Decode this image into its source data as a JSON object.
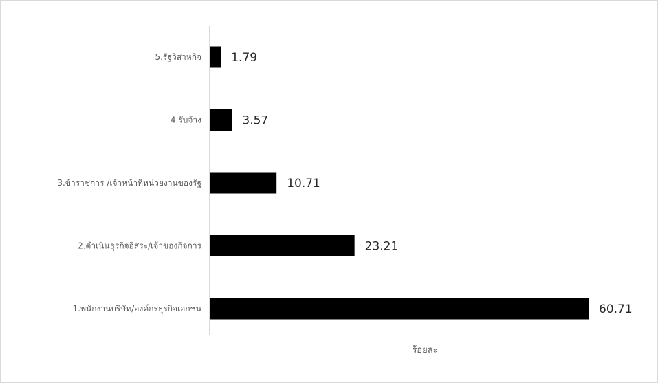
{
  "chart_data": {
    "type": "bar",
    "orientation": "horizontal",
    "categories": [
      "5.รัฐวิสาหกิจ",
      "4.รับจ้าง",
      "3.ข้าราชการ /เจ้าหน้าที่หน่วยงานของรัฐ",
      "2.ดำเนินธุรกิจอิสระ/เจ้าของกิจการ",
      "1.พนักงานบริษัท/องค์กรธุรกิจเอกชน"
    ],
    "values": [
      1.79,
      3.57,
      10.71,
      23.21,
      60.71
    ],
    "value_labels": [
      "1.79",
      "3.57",
      "10.71",
      "23.21",
      "60.71"
    ],
    "xlabel": "ร้อยละ",
    "xlim": [
      0,
      60.71
    ],
    "grid": false,
    "legend": "none",
    "bar_color": "#000000"
  }
}
